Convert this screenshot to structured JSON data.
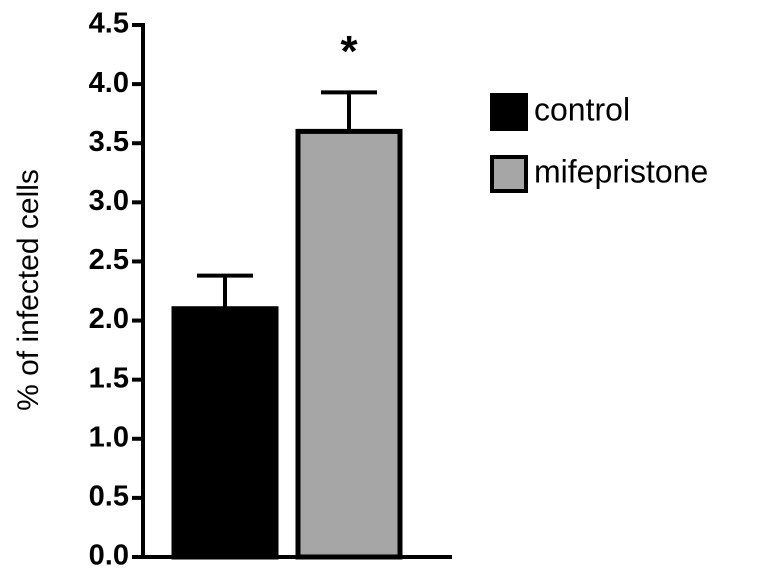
{
  "chart_data": {
    "type": "bar",
    "y_label": "% of infected cells",
    "categories": [
      null
    ],
    "series": [
      {
        "name": "control",
        "color": "#000000",
        "values": [
          2.1
        ],
        "errors": [
          0.28
        ]
      },
      {
        "name": "mifepristone",
        "color": "#a6a6a6",
        "values": [
          3.6
        ],
        "errors": [
          0.33
        ],
        "annotation": "*"
      }
    ],
    "ylim": [
      0,
      4.5
    ],
    "yticks": [
      {
        "value": 0,
        "label": "0.0"
      },
      0.5,
      {
        "value": 1,
        "label": "1.0"
      },
      1.5,
      {
        "value": 2,
        "label": "2.0"
      },
      2.5,
      {
        "value": 3,
        "label": "3.0"
      },
      3.5,
      {
        "value": 4,
        "label": "4.0"
      },
      4.5
    ],
    "grid": false,
    "legend": "right"
  }
}
